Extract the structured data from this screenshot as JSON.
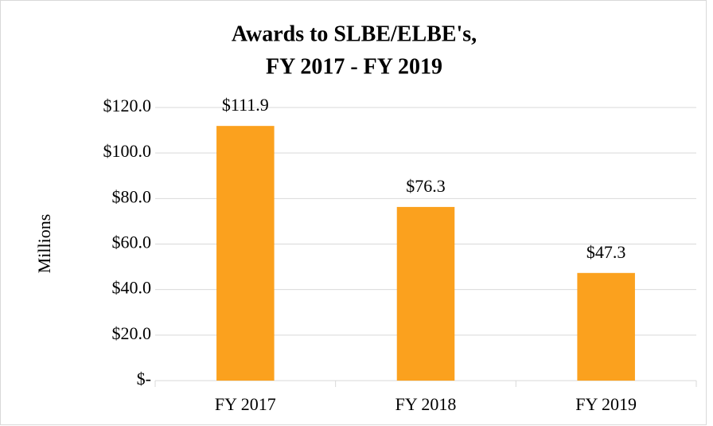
{
  "chart_data": {
    "type": "bar",
    "title": [
      "Awards to SLBE/ELBE's,",
      "FY 2017 - FY 2019"
    ],
    "y_label": "Millions",
    "categories": [
      "FY 2017",
      "FY 2018",
      "FY 2019"
    ],
    "values": [
      111.9,
      76.3,
      47.3
    ],
    "value_labels": [
      "$111.9",
      "$76.3",
      "$47.3"
    ],
    "color": "#fba11e",
    "ylim": [
      0,
      120
    ],
    "yticks": [
      {
        "value": 0,
        "label": "$-"
      },
      {
        "value": 20,
        "label": "$20.0"
      },
      {
        "value": 40,
        "label": "$40.0"
      },
      {
        "value": 60,
        "label": "$60.0"
      },
      {
        "value": 80,
        "label": "$80.0"
      },
      {
        "value": 100,
        "label": "$100.0"
      },
      {
        "value": 120,
        "label": "$120.0"
      }
    ],
    "grid": true
  }
}
